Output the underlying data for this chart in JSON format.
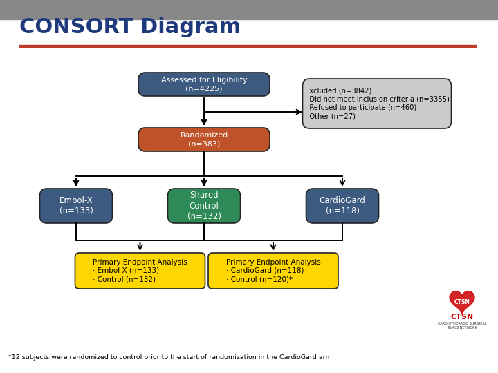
{
  "title": "CONSORT Diagram",
  "title_color": "#1F3A7A",
  "title_fontsize": 22,
  "bg_color": "#FFFFFF",
  "top_bar_color": "#888888",
  "top_bar_height": 0.052,
  "line_color": "#C0392B",
  "box1_text": "Assessed for Eligibility\n(n=4225)",
  "box1_color": "#3D5A80",
  "box1_text_color": "#FFFFFF",
  "box2_text": "Randomized\n(n=383)",
  "box2_color": "#C0522A",
  "box2_text_color": "#FFFFFF",
  "excluded_text": "Excluded (n=3842)\n· Did not meet inclusion criteria (n=3355)\n· Refused to participate (n=460)\n· Other (n=27)",
  "excluded_color": "#CCCCCC",
  "excluded_text_color": "#000000",
  "box_embolx_text": "Embol-X\n(n=133)",
  "box_embolx_color": "#3D5A80",
  "box_embolx_text_color": "#FFFFFF",
  "box_shared_text": "Shared\nControl\n(n=132)",
  "box_shared_color": "#2E8B57",
  "box_shared_text_color": "#FFFFFF",
  "box_cardio_text": "CardioGard\n(n=118)",
  "box_cardio_color": "#3D5A80",
  "box_cardio_text_color": "#FFFFFF",
  "box_analysis1_text": "Primary Endpoint Analysis\n· Embol-X (n=133)\n· Control (n=132)",
  "box_analysis1_color": "#FFD700",
  "box_analysis1_text_color": "#000000",
  "box_analysis2_text": "Primary Endpoint Analysis\n· CardioGard (n=118)\n· Control (n=120)*",
  "box_analysis2_color": "#FFD700",
  "box_analysis2_text_color": "#000000",
  "footnote": "*12 subjects were randomized to control prior to the start of randomization in the CardioGard arm",
  "arrow_color": "#000000"
}
